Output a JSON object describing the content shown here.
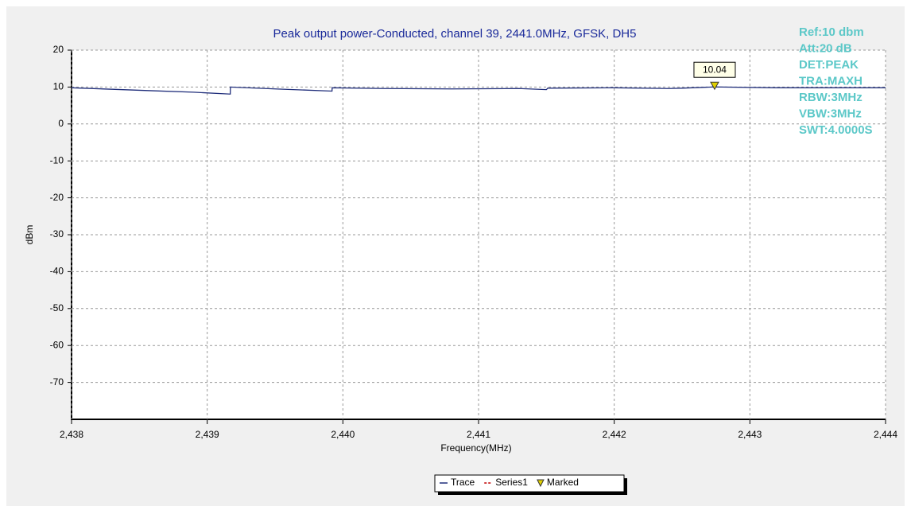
{
  "chart_data": {
    "type": "line",
    "title": "Peak output power-Conducted, channel 39, 2441.0MHz, GFSK, DH5",
    "xlabel": "Frequency(MHz)",
    "ylabel": "dBm",
    "x": [
      2438,
      2438.3,
      2438.6,
      2438.9,
      2439.17,
      2439.171,
      2439.5,
      2439.92,
      2439.921,
      2440.3,
      2440.8,
      2441.3,
      2441.5,
      2441.51,
      2442.0,
      2442.4,
      2442.5,
      2442.74,
      2443.2,
      2443.6,
      2444
    ],
    "series": [
      {
        "name": "Trace",
        "color": "#1f2d7a",
        "values": [
          9.8,
          9.4,
          9.0,
          8.6,
          8.1,
          10.0,
          9.5,
          8.9,
          9.8,
          9.6,
          9.5,
          9.6,
          9.3,
          9.7,
          9.8,
          9.6,
          9.7,
          10.04,
          9.8,
          9.8,
          9.8
        ]
      },
      {
        "name": "Series1",
        "color": "#c00000"
      }
    ],
    "marker": {
      "name": "Marked",
      "x": 2442.74,
      "value": 10.04,
      "color": "#e0d000"
    },
    "annotations": [
      "Ref:10 dbm",
      "Att:20 dB",
      "DET:PEAK",
      "TRA:MAXH",
      "RBW:3MHz",
      "VBW:3MHz",
      "SWT:4.0000S"
    ],
    "xlim": [
      2438,
      2444
    ],
    "xticks": [
      {
        "value": 2438,
        "label": "2,438"
      },
      {
        "value": 2439,
        "label": "2,439"
      },
      {
        "value": 2440,
        "label": "2,440"
      },
      {
        "value": 2441,
        "label": "2,441"
      },
      {
        "value": 2442,
        "label": "2,442"
      },
      {
        "value": 2443,
        "label": "2,443"
      },
      {
        "value": 2444,
        "label": "2,444"
      }
    ],
    "ylim": [
      -80,
      20
    ],
    "yticks": [
      -70,
      -60,
      -50,
      -40,
      -30,
      -20,
      -10,
      0,
      10,
      20
    ],
    "grid": true
  }
}
